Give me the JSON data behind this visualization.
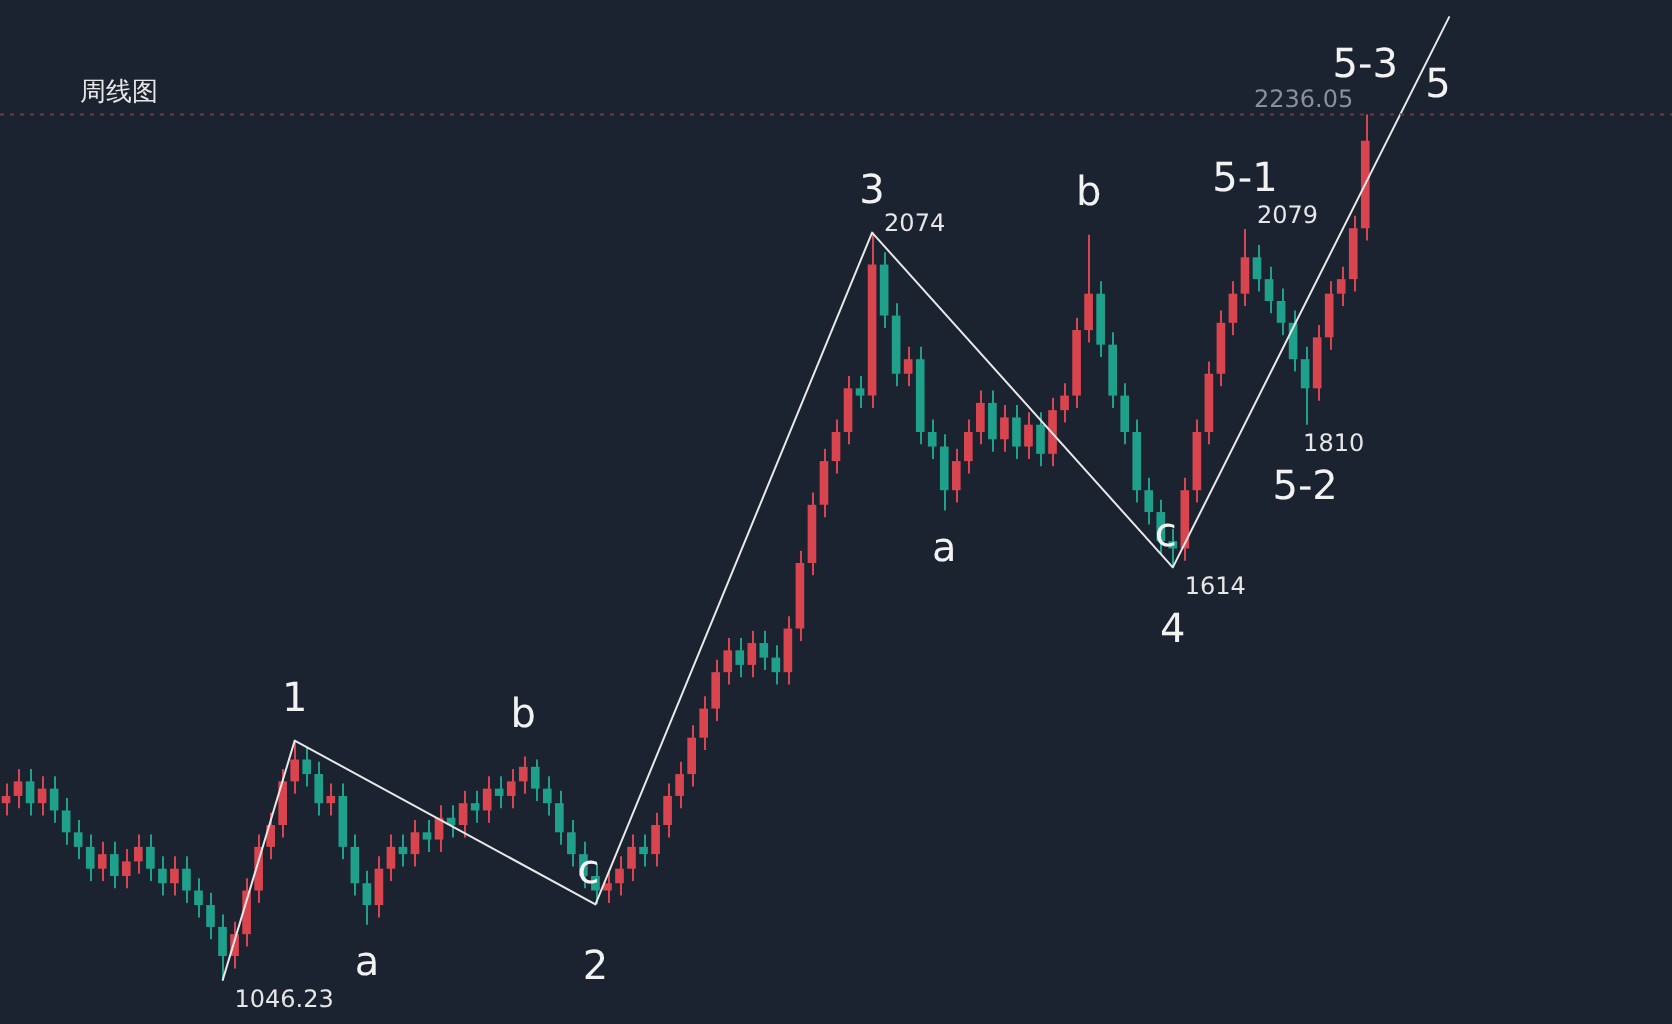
{
  "chart_data": {
    "type": "candlestick",
    "title": "周线图",
    "categories": [
      null,
      null,
      null,
      null,
      null,
      null,
      null,
      null,
      null,
      null,
      null,
      null,
      null,
      null,
      null,
      null,
      null,
      null,
      null,
      null,
      null,
      null,
      null,
      null,
      null,
      null,
      null,
      null,
      null,
      null,
      null,
      null,
      null,
      null,
      null,
      null,
      null,
      null,
      null,
      null,
      null,
      null,
      null,
      null,
      null,
      null,
      null,
      null,
      null,
      null,
      null,
      null,
      null,
      null,
      null,
      null,
      null,
      null,
      null,
      null,
      null,
      null,
      null,
      null,
      null,
      null,
      null,
      null,
      null,
      null,
      null,
      null,
      null,
      null,
      null,
      null,
      null,
      null,
      null,
      null,
      null,
      null,
      null,
      null,
      null,
      null,
      null,
      null,
      null,
      null,
      null,
      null,
      null,
      null,
      null,
      null,
      null,
      null,
      null,
      null,
      null,
      null,
      null,
      null,
      null,
      null,
      null,
      null,
      null,
      null,
      null,
      null,
      null,
      null,
      null,
      null,
      null,
      null,
      null,
      null,
      null,
      null,
      null,
      null,
      null,
      null,
      null,
      null,
      null,
      null,
      null,
      null,
      null,
      null,
      null,
      null,
      null,
      null,
      null
    ],
    "ohlc": [
      [
        1290,
        1317,
        1273,
        1300
      ],
      [
        1300,
        1337,
        1283,
        1320
      ],
      [
        1320,
        1337,
        1273,
        1290
      ],
      [
        1290,
        1327,
        1273,
        1310
      ],
      [
        1310,
        1327,
        1263,
        1280
      ],
      [
        1280,
        1297,
        1233,
        1250
      ],
      [
        1250,
        1267,
        1213,
        1230
      ],
      [
        1230,
        1247,
        1183,
        1200
      ],
      [
        1200,
        1237,
        1183,
        1220
      ],
      [
        1220,
        1237,
        1173,
        1190
      ],
      [
        1190,
        1227,
        1173,
        1210
      ],
      [
        1210,
        1247,
        1193,
        1230
      ],
      [
        1230,
        1247,
        1183,
        1200
      ],
      [
        1200,
        1217,
        1163,
        1180
      ],
      [
        1180,
        1217,
        1163,
        1200
      ],
      [
        1200,
        1217,
        1153,
        1170
      ],
      [
        1170,
        1187,
        1133,
        1150
      ],
      [
        1150,
        1167,
        1103,
        1120
      ],
      [
        1120,
        1137,
        1046.23,
        1080
      ],
      [
        1080,
        1127,
        1063,
        1110
      ],
      [
        1110,
        1187,
        1093,
        1170
      ],
      [
        1170,
        1247,
        1153,
        1230
      ],
      [
        1230,
        1277,
        1213,
        1260
      ],
      [
        1260,
        1337,
        1243,
        1320
      ],
      [
        1320,
        1376,
        1303,
        1350
      ],
      [
        1350,
        1367,
        1313,
        1330
      ],
      [
        1330,
        1347,
        1273,
        1290
      ],
      [
        1290,
        1317,
        1273,
        1300
      ],
      [
        1300,
        1317,
        1213,
        1230
      ],
      [
        1230,
        1247,
        1163,
        1180
      ],
      [
        1180,
        1197,
        1123,
        1150
      ],
      [
        1150,
        1217,
        1133,
        1200
      ],
      [
        1200,
        1247,
        1183,
        1230
      ],
      [
        1230,
        1247,
        1203,
        1220
      ],
      [
        1220,
        1267,
        1203,
        1250
      ],
      [
        1250,
        1267,
        1223,
        1240
      ],
      [
        1240,
        1287,
        1223,
        1270
      ],
      [
        1270,
        1287,
        1243,
        1260
      ],
      [
        1260,
        1307,
        1243,
        1290
      ],
      [
        1290,
        1307,
        1263,
        1280
      ],
      [
        1280,
        1327,
        1263,
        1310
      ],
      [
        1310,
        1327,
        1283,
        1300
      ],
      [
        1300,
        1337,
        1283,
        1320
      ],
      [
        1320,
        1354,
        1303,
        1340
      ],
      [
        1340,
        1350,
        1293,
        1310
      ],
      [
        1310,
        1327,
        1273,
        1290
      ],
      [
        1290,
        1307,
        1233,
        1250
      ],
      [
        1250,
        1267,
        1203,
        1220
      ],
      [
        1220,
        1237,
        1173,
        1190
      ],
      [
        1190,
        1207,
        1151,
        1170
      ],
      [
        1170,
        1197,
        1153,
        1180
      ],
      [
        1180,
        1217,
        1163,
        1200
      ],
      [
        1200,
        1247,
        1183,
        1230
      ],
      [
        1230,
        1247,
        1203,
        1220
      ],
      [
        1220,
        1277,
        1203,
        1260
      ],
      [
        1260,
        1317,
        1243,
        1300
      ],
      [
        1300,
        1347,
        1283,
        1330
      ],
      [
        1330,
        1397,
        1313,
        1380
      ],
      [
        1380,
        1437,
        1363,
        1420
      ],
      [
        1420,
        1487,
        1403,
        1470
      ],
      [
        1470,
        1517,
        1453,
        1500
      ],
      [
        1500,
        1517,
        1463,
        1480
      ],
      [
        1480,
        1527,
        1463,
        1510
      ],
      [
        1510,
        1527,
        1473,
        1490
      ],
      [
        1490,
        1507,
        1453,
        1470
      ],
      [
        1470,
        1547,
        1453,
        1530
      ],
      [
        1530,
        1637,
        1513,
        1620
      ],
      [
        1620,
        1717,
        1603,
        1700
      ],
      [
        1700,
        1777,
        1683,
        1760
      ],
      [
        1760,
        1817,
        1743,
        1800
      ],
      [
        1800,
        1877,
        1783,
        1860
      ],
      [
        1860,
        1877,
        1833,
        1850
      ],
      [
        1850,
        2074,
        1833,
        2030
      ],
      [
        2030,
        2047,
        1943,
        1960
      ],
      [
        1960,
        1977,
        1863,
        1880
      ],
      [
        1880,
        1917,
        1863,
        1900
      ],
      [
        1900,
        1917,
        1783,
        1800
      ],
      [
        1800,
        1817,
        1763,
        1780
      ],
      [
        1780,
        1797,
        1692,
        1720
      ],
      [
        1720,
        1777,
        1703,
        1760
      ],
      [
        1760,
        1817,
        1743,
        1800
      ],
      [
        1800,
        1857,
        1783,
        1840
      ],
      [
        1840,
        1857,
        1773,
        1790
      ],
      [
        1790,
        1837,
        1773,
        1820
      ],
      [
        1820,
        1837,
        1763,
        1780
      ],
      [
        1780,
        1827,
        1763,
        1810
      ],
      [
        1810,
        1827,
        1753,
        1770
      ],
      [
        1770,
        1847,
        1753,
        1830
      ],
      [
        1830,
        1867,
        1813,
        1850
      ],
      [
        1850,
        1957,
        1833,
        1940
      ],
      [
        1940,
        2071,
        1923,
        1990
      ],
      [
        1990,
        2007,
        1903,
        1920
      ],
      [
        1920,
        1937,
        1833,
        1850
      ],
      [
        1850,
        1867,
        1783,
        1800
      ],
      [
        1800,
        1817,
        1703,
        1720
      ],
      [
        1720,
        1737,
        1673,
        1690
      ],
      [
        1690,
        1707,
        1633,
        1650
      ],
      [
        1650,
        1667,
        1614,
        1640
      ],
      [
        1640,
        1737,
        1623,
        1720
      ],
      [
        1720,
        1817,
        1703,
        1800
      ],
      [
        1800,
        1897,
        1783,
        1880
      ],
      [
        1880,
        1967,
        1863,
        1950
      ],
      [
        1950,
        2007,
        1933,
        1990
      ],
      [
        1990,
        2079,
        1973,
        2040
      ],
      [
        2040,
        2057,
        1993,
        2010
      ],
      [
        2010,
        2027,
        1963,
        1980
      ],
      [
        1980,
        1997,
        1933,
        1950
      ],
      [
        1950,
        1967,
        1883,
        1900
      ],
      [
        1900,
        1917,
        1810,
        1860
      ],
      [
        1860,
        1947,
        1843,
        1930
      ],
      [
        1930,
        2007,
        1913,
        1990
      ],
      [
        1990,
        2027,
        1973,
        2010
      ],
      [
        2010,
        2097,
        1993,
        2080
      ],
      [
        2080,
        2236.05,
        2063,
        2200
      ],
      null,
      null,
      null,
      null,
      null,
      null,
      null,
      null,
      null,
      null,
      null,
      null,
      null,
      null,
      null,
      null,
      null,
      null,
      null,
      null,
      null,
      null,
      null,
      null,
      null
    ],
    "colors": [
      "#d9454f",
      "#d9454f",
      "#1fa08a",
      "#d9454f",
      "#1fa08a",
      "#1fa08a",
      "#1fa08a",
      "#1fa08a",
      "#d9454f",
      "#1fa08a",
      "#d9454f",
      "#d9454f",
      "#1fa08a",
      "#1fa08a",
      "#d9454f",
      "#1fa08a",
      "#1fa08a",
      "#1fa08a",
      "#1fa08a",
      "#d9454f",
      "#d9454f",
      "#d9454f",
      "#d9454f",
      "#d9454f",
      "#d9454f",
      "#1fa08a",
      "#1fa08a",
      "#d9454f",
      "#1fa08a",
      "#1fa08a",
      "#1fa08a",
      "#d9454f",
      "#d9454f",
      "#1fa08a",
      "#d9454f",
      "#1fa08a",
      "#d9454f",
      "#1fa08a",
      "#d9454f",
      "#1fa08a",
      "#d9454f",
      "#1fa08a",
      "#d9454f",
      "#d9454f",
      "#1fa08a",
      "#1fa08a",
      "#1fa08a",
      "#1fa08a",
      "#1fa08a",
      "#1fa08a",
      "#d9454f",
      "#d9454f",
      "#d9454f",
      "#1fa08a",
      "#d9454f",
      "#d9454f",
      "#d9454f",
      "#d9454f",
      "#d9454f",
      "#d9454f",
      "#d9454f",
      "#1fa08a",
      "#d9454f",
      "#1fa08a",
      "#1fa08a",
      "#d9454f",
      "#d9454f",
      "#d9454f",
      "#d9454f",
      "#d9454f",
      "#d9454f",
      "#1fa08a",
      "#d9454f",
      "#1fa08a",
      "#1fa08a",
      "#d9454f",
      "#1fa08a",
      "#1fa08a",
      "#1fa08a",
      "#d9454f",
      "#d9454f",
      "#d9454f",
      "#1fa08a",
      "#d9454f",
      "#1fa08a",
      "#d9454f",
      "#1fa08a",
      "#d9454f",
      "#d9454f",
      "#d9454f",
      "#d9454f",
      "#1fa08a",
      "#1fa08a",
      "#1fa08a",
      "#1fa08a",
      "#1fa08a",
      "#1fa08a",
      "#1fa08a",
      "#d9454f",
      "#d9454f",
      "#d9454f",
      "#d9454f",
      "#d9454f",
      "#d9454f",
      "#1fa08a",
      "#1fa08a",
      "#1fa08a",
      "#1fa08a",
      "#1fa08a",
      "#d9454f",
      "#d9454f",
      "#d9454f",
      "#d9454f",
      "#d9454f",
      null,
      null,
      null,
      null,
      null,
      null,
      null,
      null,
      null,
      null,
      null,
      null,
      null,
      null,
      null,
      null,
      null,
      null,
      null,
      null,
      null,
      null,
      null,
      null,
      null
    ],
    "series": [
      {
        "type": "line",
        "color": "#e8e8e8",
        "values": [
          null,
          null,
          null,
          null,
          null,
          null,
          null,
          null,
          null,
          null,
          null,
          null,
          null,
          null,
          null,
          null,
          null,
          null,
          1046.23,
          null,
          null,
          null,
          null,
          null,
          1376,
          null,
          null,
          null,
          null,
          null,
          null,
          null,
          null,
          null,
          null,
          null,
          null,
          null,
          null,
          null,
          null,
          null,
          null,
          null,
          null,
          null,
          null,
          null,
          null,
          1151,
          null,
          null,
          null,
          null,
          null,
          null,
          null,
          null,
          null,
          null,
          null,
          null,
          null,
          null,
          null,
          null,
          null,
          null,
          null,
          null,
          null,
          null,
          2074,
          null,
          null,
          null,
          null,
          null,
          null,
          null,
          null,
          null,
          null,
          null,
          null,
          null,
          null,
          null,
          null,
          null,
          null,
          null,
          null,
          null,
          null,
          null,
          null,
          1614,
          null,
          null,
          null,
          null,
          null,
          null,
          null,
          null,
          null,
          null,
          null,
          null,
          null,
          null,
          null,
          null,
          null,
          null,
          null,
          null,
          null,
          null,
          2371,
          null,
          null,
          null,
          null,
          null,
          null,
          null,
          null,
          null,
          null,
          null,
          null,
          null,
          null,
          null,
          null,
          null,
          null
        ],
        "value_labels": [
          null,
          null,
          null,
          null,
          null,
          null,
          null,
          null,
          null,
          null,
          null,
          null,
          null,
          null,
          null,
          null,
          null,
          null,
          "1046.23",
          null,
          null,
          null,
          null,
          null,
          null,
          null,
          null,
          null,
          null,
          null,
          null,
          null,
          null,
          null,
          null,
          null,
          null,
          null,
          null,
          null,
          null,
          null,
          null,
          null,
          null,
          null,
          null,
          null,
          null,
          null,
          null,
          null,
          null,
          null,
          null,
          null,
          null,
          null,
          null,
          null,
          null,
          null,
          null,
          null,
          null,
          null,
          null,
          null,
          null,
          null,
          null,
          null,
          "2074",
          null,
          null,
          null,
          null,
          null,
          null,
          null,
          null,
          null,
          null,
          null,
          null,
          null,
          null,
          null,
          null,
          null,
          null,
          null,
          null,
          null,
          null,
          null,
          null,
          "1614",
          null,
          null,
          null,
          null,
          null,
          null,
          null,
          null,
          null,
          null,
          null,
          null,
          null,
          null,
          null,
          null,
          null,
          null,
          null,
          null,
          null,
          null,
          null,
          null,
          null,
          null,
          null,
          null,
          null,
          null,
          null,
          null,
          null,
          null,
          null,
          null,
          null,
          null,
          null,
          null,
          null
        ]
      }
    ],
    "tick_labels": false,
    "ref_lines": [
      {
        "axis": "y",
        "value": 2236.05,
        "label": "2236.05",
        "color": "#6e3a46",
        "line_style": "dotted"
      }
    ],
    "annotations": [
      {
        "text": "1",
        "y": 1376
      },
      {
        "text": "a",
        "y": 1123
      },
      {
        "text": "b",
        "y": 1354
      },
      {
        "text": "2",
        "y": 1151
      },
      {
        "text": "c",
        "y": 1151
      },
      {
        "text": "3",
        "y": 2074
      },
      {
        "text": "a",
        "y": 1692
      },
      {
        "text": "b",
        "y": 2071
      },
      {
        "text": "4",
        "y": 1614
      },
      {
        "text": "c",
        "y": 1614
      },
      {
        "text": "5-1",
        "y": 2079
      },
      "2079",
      {
        "text": "5-2",
        "y": 1810
      },
      "1810",
      {
        "text": "5-3",
        "y": 2236.05
      },
      {
        "text": "5",
        "y": 2236.05
      }
    ]
  }
}
